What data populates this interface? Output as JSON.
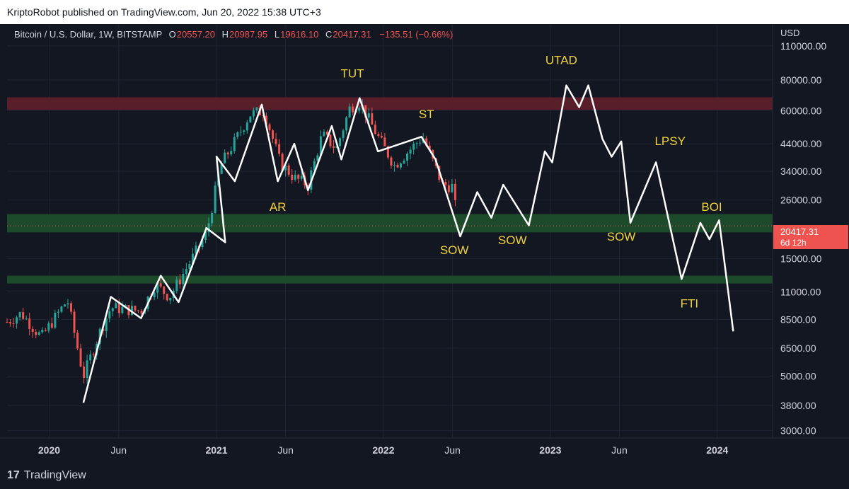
{
  "header": {
    "publisher_line": "KriptoRobot published on TradingView.com, Jun 20, 2022 15:38 UTC+3"
  },
  "legend": {
    "symbol": "Bitcoin / U.S. Dollar, 1W, BITSTAMP",
    "open_label": "O",
    "open": "20557.20",
    "high_label": "H",
    "high": "20987.95",
    "low_label": "L",
    "low": "19616.10",
    "close_label": "C",
    "close": "20417.31",
    "change": "−135.51 (−0.66%)"
  },
  "price_axis": {
    "currency": "USD"
  },
  "price_tag": {
    "price": "20417.31",
    "countdown": "6d 12h"
  },
  "footer": {
    "brand": "TradingView",
    "brand_mark": "17"
  },
  "colors": {
    "background": "#131722",
    "bull": "#26a69a",
    "bear": "#ef5350",
    "resistance_zone": "#5c1f2a",
    "support_zone": "#1e4d2b",
    "annotation_text": "#f0d33c",
    "projection_line": "#ffffff"
  },
  "chart_data": {
    "type": "line",
    "y_scale": "log",
    "ylim": [
      2800,
      135000
    ],
    "xlim": [
      "2019-10-01",
      "2024-05-01"
    ],
    "y_ticks": [
      {
        "label": "110000.00",
        "value": 110000
      },
      {
        "label": "80000.00",
        "value": 80000
      },
      {
        "label": "60000.00",
        "value": 60000
      },
      {
        "label": "44000.00",
        "value": 44000
      },
      {
        "label": "34000.00",
        "value": 34000
      },
      {
        "label": "26000.00",
        "value": 26000
      },
      {
        "label": "15000.00",
        "value": 15000
      },
      {
        "label": "11000.00",
        "value": 11000
      },
      {
        "label": "8500.00",
        "value": 8500
      },
      {
        "label": "6500.00",
        "value": 6500
      },
      {
        "label": "5000.00",
        "value": 5000
      },
      {
        "label": "3800.00",
        "value": 3800
      },
      {
        "label": "3000.00",
        "value": 3000
      }
    ],
    "x_ticks": [
      {
        "label": "2020",
        "date": "2020-01-01",
        "bold": true
      },
      {
        "label": "Jun",
        "date": "2020-06-01",
        "bold": false
      },
      {
        "label": "2021",
        "date": "2021-01-01",
        "bold": true
      },
      {
        "label": "Jun",
        "date": "2021-06-01",
        "bold": false
      },
      {
        "label": "2022",
        "date": "2022-01-01",
        "bold": true
      },
      {
        "label": "Jun",
        "date": "2022-06-01",
        "bold": false
      },
      {
        "label": "2023",
        "date": "2023-01-01",
        "bold": true
      },
      {
        "label": "Jun",
        "date": "2023-06-01",
        "bold": false
      },
      {
        "label": "2024",
        "date": "2024-01-01",
        "bold": true
      }
    ],
    "zones": [
      {
        "name": "resistance",
        "low": 60500,
        "high": 68000,
        "color": "#5c1f2a"
      },
      {
        "name": "support-upper",
        "low": 19200,
        "high": 22800,
        "color": "#1e4d2b"
      },
      {
        "name": "support-lower",
        "low": 11900,
        "high": 12800,
        "color": "#1e4d2b"
      }
    ],
    "series": [
      {
        "kind": "projection",
        "points": [
          [
            "2020-03-16",
            3900
          ],
          [
            "2020-05-15",
            10500
          ],
          [
            "2020-07-20",
            8600
          ],
          [
            "2020-09-01",
            12800
          ],
          [
            "2020-10-10",
            10000
          ],
          [
            "2020-12-10",
            20000
          ],
          [
            "2021-01-20",
            17500
          ],
          [
            "2021-01-01",
            39000
          ],
          [
            "2021-02-10",
            31000
          ],
          [
            "2021-04-10",
            63500
          ],
          [
            "2021-05-15",
            31000
          ],
          [
            "2021-06-20",
            44000
          ],
          [
            "2021-07-20",
            28500
          ],
          [
            "2021-09-10",
            52000
          ],
          [
            "2021-10-01",
            38000
          ],
          [
            "2021-11-10",
            67500
          ],
          [
            "2021-12-20",
            41000
          ],
          [
            "2022-03-25",
            47000
          ],
          [
            "2022-04-25",
            38000
          ],
          [
            "2022-06-18",
            18500
          ],
          [
            "2022-07-25",
            28000
          ],
          [
            "2022-08-25",
            22000
          ],
          [
            "2022-09-20",
            30000
          ],
          [
            "2022-11-15",
            20500
          ],
          [
            "2022-12-20",
            41000
          ],
          [
            "2023-01-05",
            37000
          ],
          [
            "2023-02-05",
            76000
          ],
          [
            "2023-03-05",
            62000
          ],
          [
            "2023-03-25",
            76000
          ],
          [
            "2023-04-25",
            46000
          ],
          [
            "2023-05-15",
            39000
          ],
          [
            "2023-06-05",
            45000
          ],
          [
            "2023-06-25",
            21000
          ],
          [
            "2023-08-20",
            37000
          ],
          [
            "2023-10-15",
            12400
          ],
          [
            "2023-11-25",
            21000
          ],
          [
            "2023-12-15",
            18000
          ],
          [
            "2024-01-05",
            21500
          ],
          [
            "2024-02-05",
            7600
          ]
        ]
      }
    ],
    "annotations": [
      {
        "text": "TUT",
        "date": "2021-10-25",
        "value": 82000
      },
      {
        "text": "ST",
        "date": "2022-04-05",
        "value": 56000
      },
      {
        "text": "AR",
        "date": "2021-05-15",
        "value": 23500
      },
      {
        "text": "SOW",
        "date": "2022-06-05",
        "value": 15700
      },
      {
        "text": "SOW",
        "date": "2022-10-10",
        "value": 17200
      },
      {
        "text": "UTAD",
        "date": "2023-01-25",
        "value": 93000
      },
      {
        "text": "LPSY",
        "date": "2023-09-20",
        "value": 43500
      },
      {
        "text": "SOW",
        "date": "2023-06-05",
        "value": 17800
      },
      {
        "text": "BOI",
        "date": "2023-12-20",
        "value": 23500
      },
      {
        "text": "FTI",
        "date": "2023-11-01",
        "value": 9500
      }
    ],
    "last_price": 20417.31
  }
}
